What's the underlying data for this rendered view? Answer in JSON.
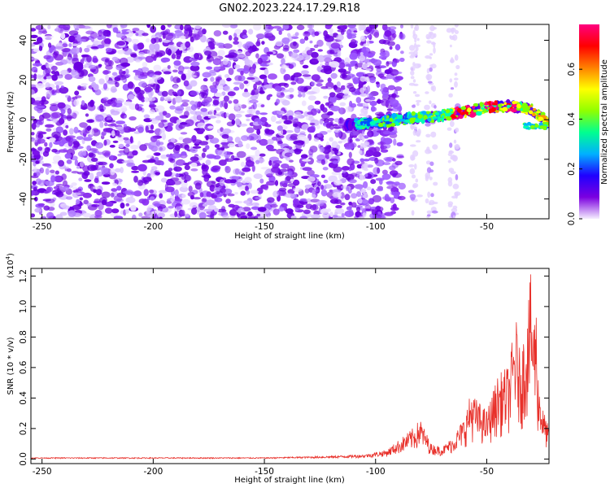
{
  "title": "GN02.2023.224.17.29.R18",
  "chart_data": [
    {
      "type": "heatmap",
      "name": "spectrogram",
      "xlabel": "Height of straight line (km)",
      "ylabel": "Frequency (Hz)",
      "xlim": [
        -255,
        -22
      ],
      "ylim": [
        -50,
        48
      ],
      "xticks": [
        -250,
        -200,
        -150,
        -100,
        -50
      ],
      "xtick_labels": [
        "-250",
        "-200",
        "-150",
        "-100",
        "-50"
      ],
      "yticks": [
        -40,
        -20,
        0,
        20,
        40
      ],
      "ytick_labels": [
        "-40",
        "-20",
        "0",
        "20",
        "40"
      ],
      "noise_region_x": [
        -255,
        -100
      ],
      "quiet_gap_x": [
        -97,
        -88
      ],
      "vertical_streaks_x": [
        -105,
        -82,
        -75,
        -65
      ],
      "signal_band": {
        "x": [
          -113,
          -100,
          -90,
          -80,
          -70,
          -60,
          -50,
          -40,
          -30,
          -22
        ],
        "center_hz": [
          -3,
          -1.5,
          0,
          1,
          2,
          4,
          6,
          7,
          5,
          -2
        ],
        "peak_x": [
          -63,
          -57,
          -48,
          -40
        ],
        "width_hz": 5
      },
      "colorbar": {
        "label": "Normalized spectral amplitude",
        "range": [
          0,
          0.78
        ],
        "ticks": [
          0.0,
          0.2,
          0.4,
          0.6
        ],
        "tick_labels": [
          "0.0",
          "0.2",
          "0.4",
          "0.6"
        ],
        "colors": [
          "#f5eeff",
          "#7b00e0",
          "#2000ff",
          "#00b0ff",
          "#00ff90",
          "#90ff00",
          "#ffff00",
          "#ff8000",
          "#ff0000",
          "#ff0080"
        ]
      }
    },
    {
      "type": "line",
      "name": "snr",
      "xlabel": "Height of straight line (km)",
      "ylabel": "SNR (10 * v/v)",
      "y_multiplier": "(x10",
      "y_multiplier_exp": "4",
      "y_multiplier_close": ")",
      "xlim": [
        -255,
        -22
      ],
      "ylim": [
        -0.03,
        1.25
      ],
      "xticks": [
        -250,
        -200,
        -150,
        -100,
        -50
      ],
      "xtick_labels": [
        "-250",
        "-200",
        "-150",
        "-100",
        "-50"
      ],
      "yticks": [
        0.0,
        0.2,
        0.4,
        0.6,
        0.8,
        1.0,
        1.2
      ],
      "ytick_labels": [
        "0.0",
        "0.2",
        "0.4",
        "0.6",
        "0.8",
        "1.0",
        "1.2"
      ],
      "color": "#e8302a",
      "series": [
        {
          "name": "SNR",
          "x": [
            -255,
            -200,
            -150,
            -120,
            -105,
            -95,
            -90,
            -85,
            -82,
            -80,
            -78,
            -75,
            -70,
            -65,
            -60,
            -57,
            -55,
            -50,
            -45,
            -40,
            -37,
            -35,
            -33,
            -31,
            -30,
            -29,
            -28,
            -27,
            -25,
            -22
          ],
          "values": [
            0.01,
            0.01,
            0.01,
            0.02,
            0.03,
            0.06,
            0.12,
            0.18,
            0.22,
            0.27,
            0.2,
            0.1,
            0.08,
            0.15,
            0.28,
            0.45,
            0.4,
            0.32,
            0.55,
            0.62,
            0.95,
            0.7,
            0.85,
            1.1,
            1.25,
            0.9,
            1.15,
            0.6,
            0.35,
            0.2
          ]
        }
      ]
    }
  ]
}
